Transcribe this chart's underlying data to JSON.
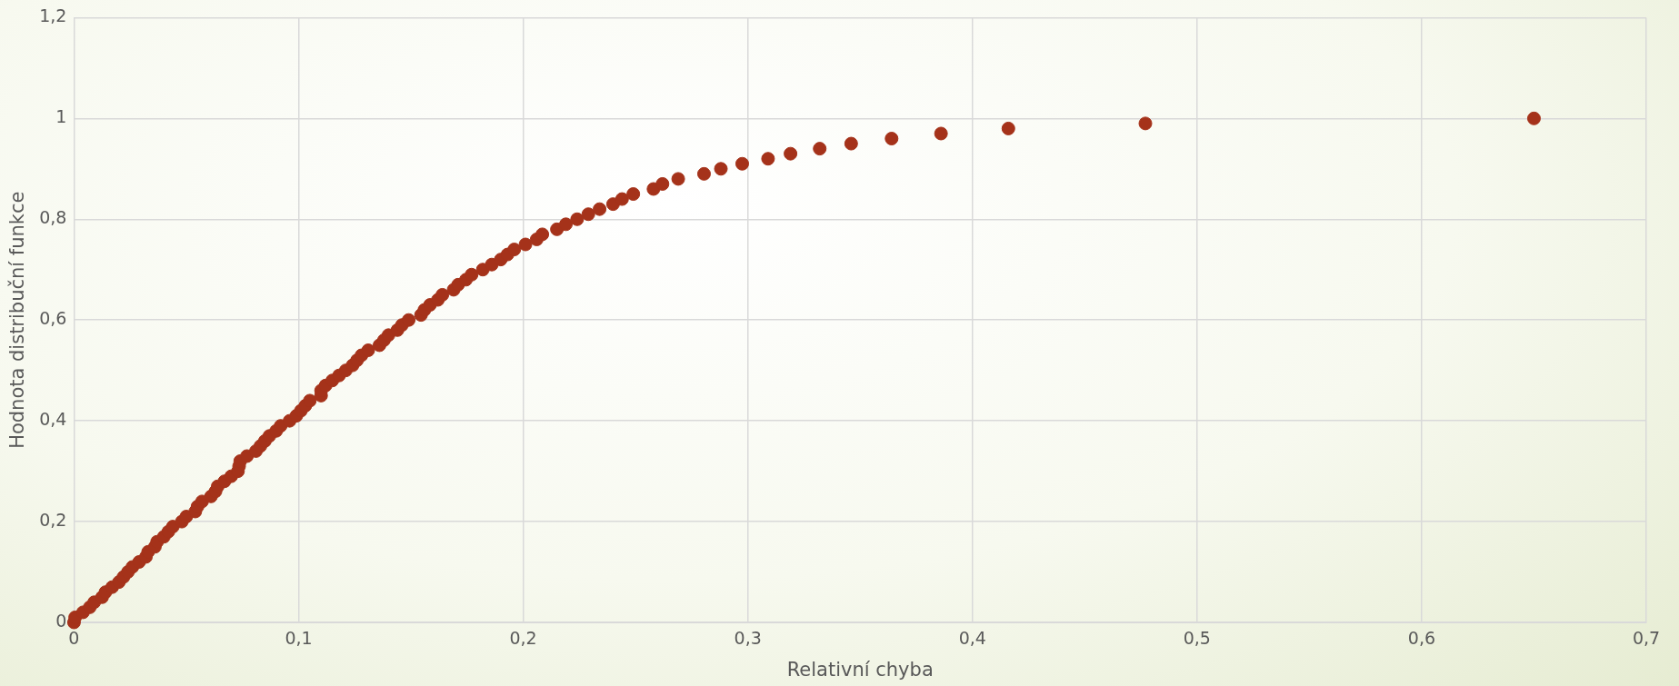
{
  "chart_data": {
    "type": "scatter",
    "xlabel": "Relativní chyba",
    "ylabel": "Hodnota distribuční funkce",
    "series": [
      {
        "color": "#a5321a",
        "x": [
          0,
          0.0005,
          0.004,
          0.007,
          0.009,
          0.0125,
          0.014,
          0.017,
          0.02,
          0.022,
          0.024,
          0.026,
          0.029,
          0.032,
          0.033,
          0.036,
          0.037,
          0.04,
          0.042,
          0.044,
          0.048,
          0.05,
          0.054,
          0.055,
          0.057,
          0.061,
          0.063,
          0.064,
          0.067,
          0.07,
          0.073,
          0.0735,
          0.074,
          0.077,
          0.081,
          0.083,
          0.085,
          0.087,
          0.09,
          0.092,
          0.096,
          0.099,
          0.101,
          0.103,
          0.105,
          0.11,
          0.11,
          0.112,
          0.115,
          0.118,
          0.121,
          0.124,
          0.126,
          0.128,
          0.131,
          0.136,
          0.138,
          0.14,
          0.144,
          0.146,
          0.149,
          0.1545,
          0.156,
          0.1585,
          0.162,
          0.164,
          0.169,
          0.171,
          0.1745,
          0.177,
          0.182,
          0.186,
          0.19,
          0.193,
          0.196,
          0.201,
          0.206,
          0.2085,
          0.215,
          0.219,
          0.224,
          0.229,
          0.234,
          0.24,
          0.244,
          0.249,
          0.258,
          0.262,
          0.269,
          0.2805,
          0.288,
          0.2975,
          0.309,
          0.319,
          0.332,
          0.346,
          0.364,
          0.386,
          0.416,
          0.477,
          0.65
        ],
        "values": [
          0,
          0.01,
          0.02,
          0.03,
          0.04,
          0.05,
          0.06,
          0.07,
          0.08,
          0.09,
          0.1,
          0.11,
          0.12,
          0.13,
          0.14,
          0.15,
          0.16,
          0.17,
          0.18,
          0.19,
          0.2,
          0.21,
          0.22,
          0.23,
          0.24,
          0.25,
          0.26,
          0.27,
          0.28,
          0.29,
          0.3,
          0.31,
          0.32,
          0.33,
          0.34,
          0.35,
          0.36,
          0.37,
          0.38,
          0.39,
          0.4,
          0.41,
          0.42,
          0.43,
          0.44,
          0.45,
          0.46,
          0.47,
          0.48,
          0.49,
          0.5,
          0.51,
          0.52,
          0.53,
          0.54,
          0.55,
          0.56,
          0.57,
          0.58,
          0.59,
          0.6,
          0.61,
          0.62,
          0.63,
          0.64,
          0.65,
          0.66,
          0.67,
          0.68,
          0.69,
          0.7,
          0.71,
          0.72,
          0.73,
          0.74,
          0.75,
          0.76,
          0.77,
          0.78,
          0.79,
          0.8,
          0.81,
          0.82,
          0.83,
          0.84,
          0.85,
          0.86,
          0.87,
          0.88,
          0.89,
          0.9,
          0.91,
          0.92,
          0.93,
          0.94,
          0.95,
          0.96,
          0.97,
          0.98,
          0.99,
          1
        ]
      }
    ],
    "xlim": [
      0,
      0.7
    ],
    "xticks": [
      0,
      {
        "value": 0.1,
        "label": "0,1"
      },
      {
        "value": 0.2,
        "label": "0,2"
      },
      {
        "value": 0.3,
        "label": "0,3"
      },
      {
        "value": 0.4,
        "label": "0,4"
      },
      {
        "value": 0.5,
        "label": "0,5"
      },
      {
        "value": 0.6,
        "label": "0,6"
      },
      {
        "value": 0.7,
        "label": "0,7"
      }
    ],
    "ylim": [
      0,
      1.2
    ],
    "yticks": [
      0,
      {
        "value": 0.2,
        "label": "0,2"
      },
      {
        "value": 0.4,
        "label": "0,4"
      },
      {
        "value": 0.6,
        "label": "0,6"
      },
      {
        "value": 0.8,
        "label": "0,8"
      },
      1,
      {
        "value": 1.2,
        "label": "1,2"
      }
    ],
    "grid": true,
    "marker": "circle",
    "legend": false
  }
}
